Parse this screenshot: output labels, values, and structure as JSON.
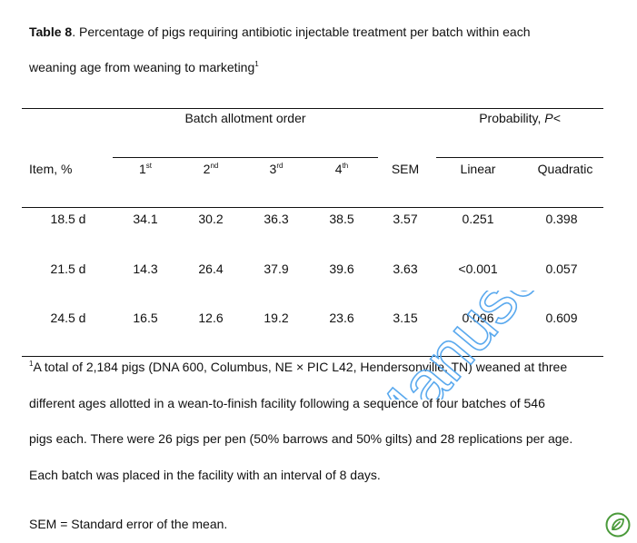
{
  "caption": {
    "label": "Table 8",
    "line1_rest": ". Percentage of pigs requiring antibiotic injectable treatment per batch within each",
    "line2": "weaning age from weaning to marketing",
    "line2_sup": "1"
  },
  "header": {
    "item_label": "Item, %",
    "group_batch": "Batch allotment order",
    "group_prob_prefix": "Probability, ",
    "group_prob_italic": "P<",
    "batches": [
      {
        "num": "1",
        "sup": "st"
      },
      {
        "num": "2",
        "sup": "nd"
      },
      {
        "num": "3",
        "sup": "rd"
      },
      {
        "num": "4",
        "sup": "th"
      }
    ],
    "sem": "SEM",
    "linear": "Linear",
    "quadratic": "Quadratic"
  },
  "rows": [
    {
      "item": "18.5 d",
      "b1": "34.1",
      "b2": "30.2",
      "b3": "36.3",
      "b4": "38.5",
      "sem": "3.57",
      "linear": "0.251",
      "quadratic": "0.398"
    },
    {
      "item": "21.5 d",
      "b1": "14.3",
      "b2": "26.4",
      "b3": "37.9",
      "b4": "39.6",
      "sem": "3.63",
      "linear": "<0.001",
      "quadratic": "0.057"
    },
    {
      "item": "24.5 d",
      "b1": "16.5",
      "b2": "12.6",
      "b3": "19.2",
      "b4": "23.6",
      "sem": "3.15",
      "linear": "0.096",
      "quadratic": "0.609"
    }
  ],
  "footnote": {
    "sup": "1",
    "line1": "A total of 2,184 pigs (DNA 600, Columbus, NE × PIC L42, Hendersonville, TN) weaned at three",
    "line2": "different ages allotted in a wean-to-finish facility following a sequence of four batches of 546",
    "line3": "pigs each. There were 26 pigs per pen (50% barrows and 50% gilts) and 28 replications per age.",
    "line4": "Each batch was placed in the facility with an interval of 8 days.",
    "sem_note": "SEM = Standard error of the mean."
  },
  "watermark": {
    "text": "d Manuscript",
    "color": "#5aa9ee"
  },
  "logo": {
    "icon": "leaf-badge-icon",
    "color": "#4a9a3a"
  }
}
